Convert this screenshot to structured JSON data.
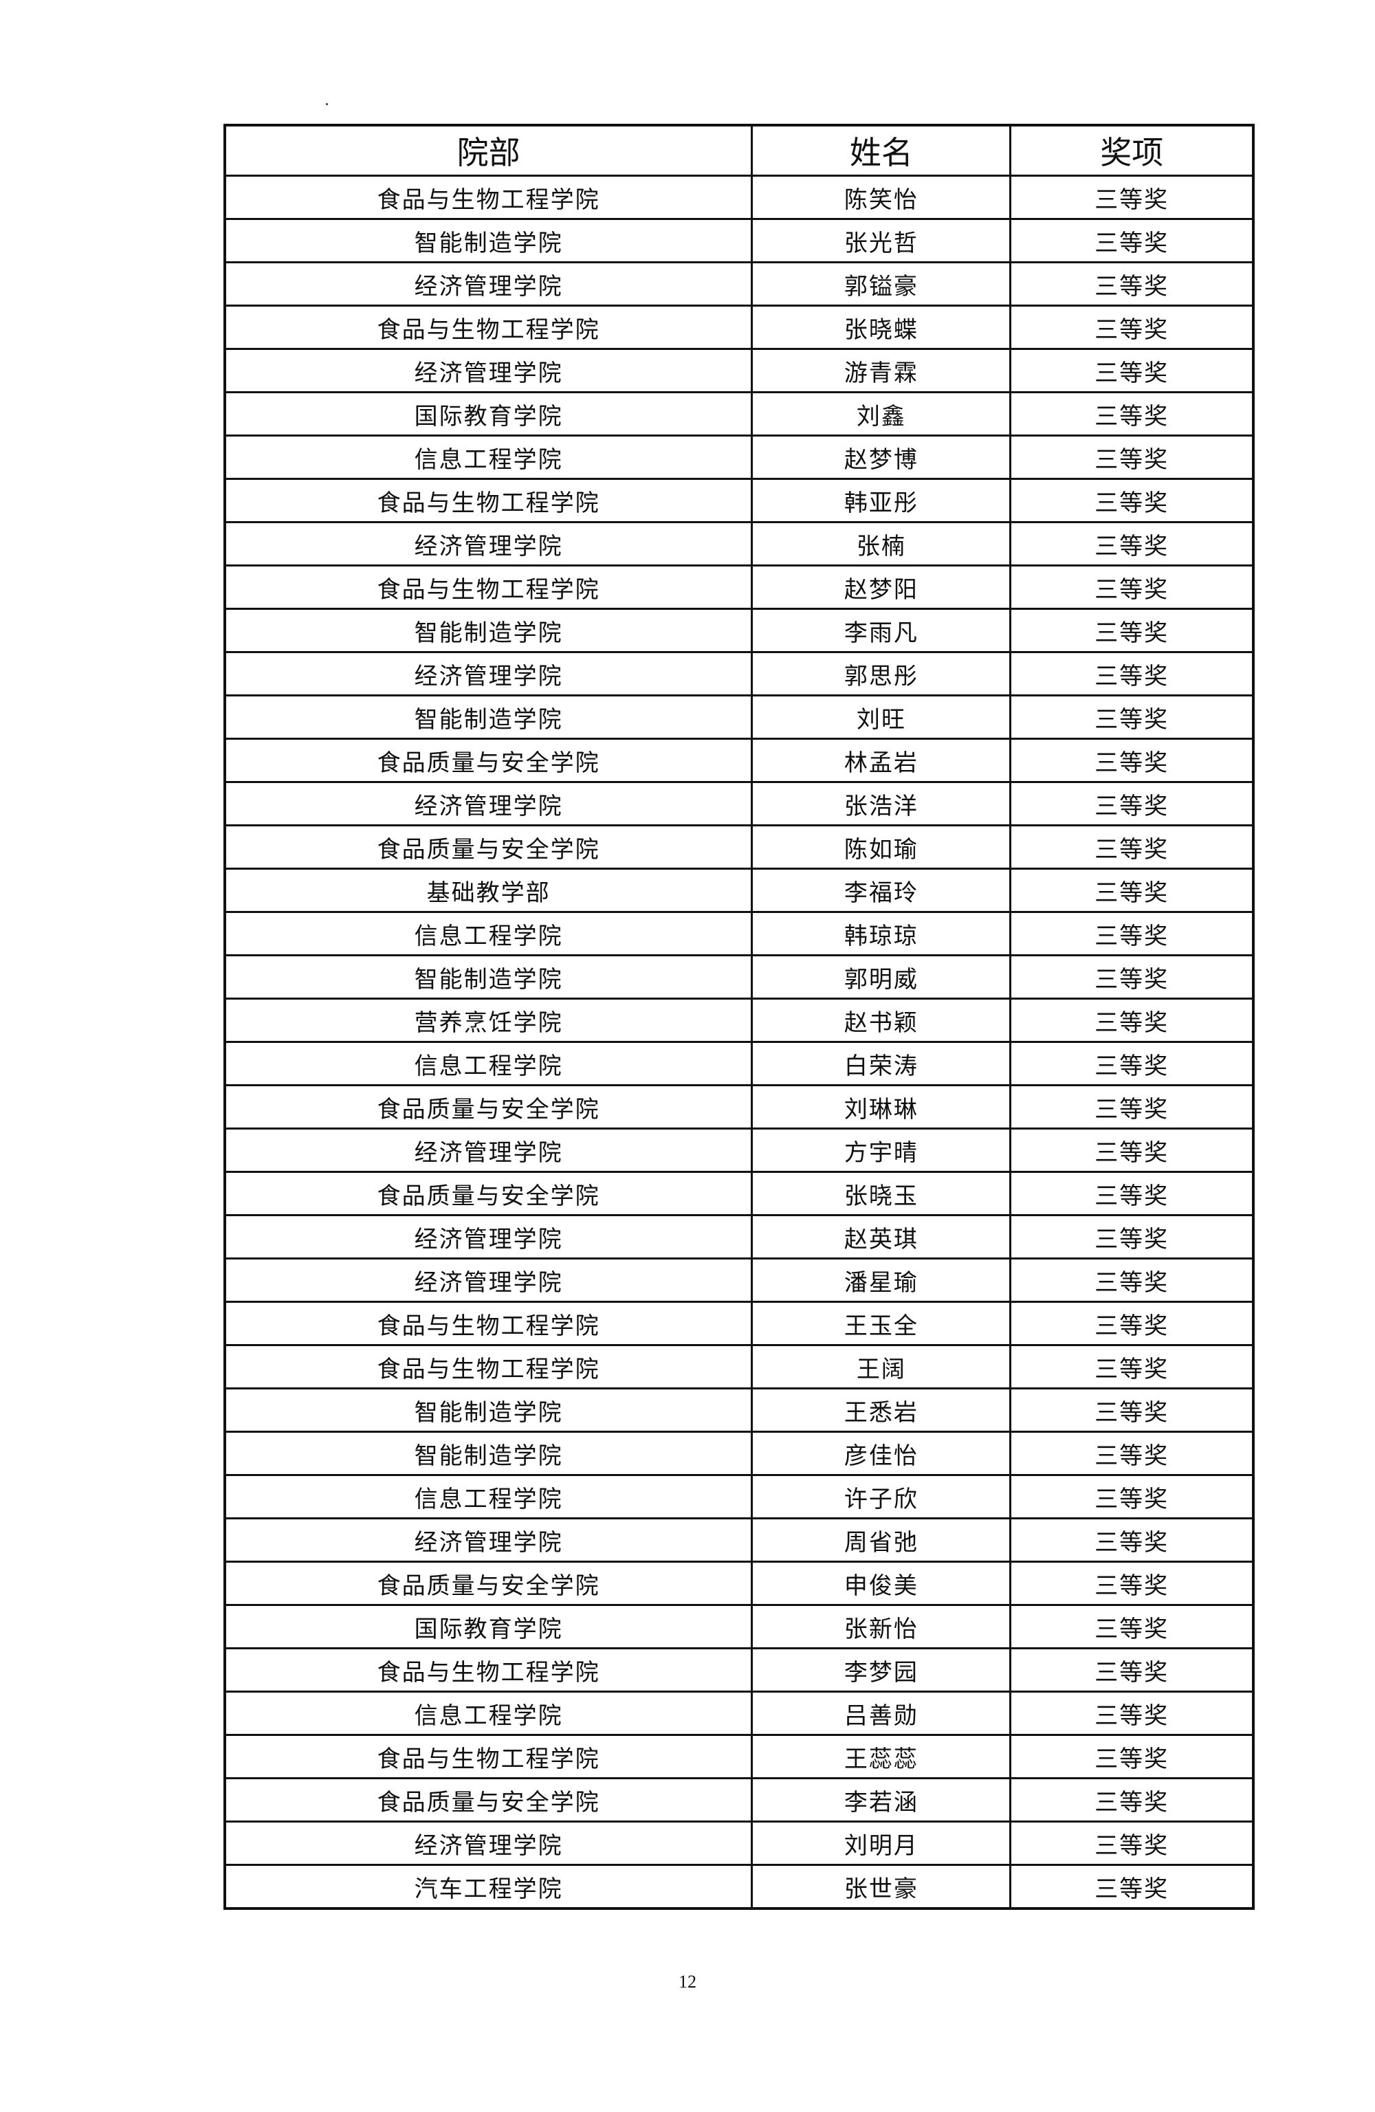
{
  "table": {
    "headers": [
      "院部",
      "姓名",
      "奖项"
    ],
    "rows": [
      [
        "食品与生物工程学院",
        "陈笑怡",
        "三等奖"
      ],
      [
        "智能制造学院",
        "张光哲",
        "三等奖"
      ],
      [
        "经济管理学院",
        "郭镒豪",
        "三等奖"
      ],
      [
        "食品与生物工程学院",
        "张晓蝶",
        "三等奖"
      ],
      [
        "经济管理学院",
        "游青霖",
        "三等奖"
      ],
      [
        "国际教育学院",
        "刘鑫",
        "三等奖"
      ],
      [
        "信息工程学院",
        "赵梦博",
        "三等奖"
      ],
      [
        "食品与生物工程学院",
        "韩亚彤",
        "三等奖"
      ],
      [
        "经济管理学院",
        "张楠",
        "三等奖"
      ],
      [
        "食品与生物工程学院",
        "赵梦阳",
        "三等奖"
      ],
      [
        "智能制造学院",
        "李雨凡",
        "三等奖"
      ],
      [
        "经济管理学院",
        "郭思彤",
        "三等奖"
      ],
      [
        "智能制造学院",
        "刘旺",
        "三等奖"
      ],
      [
        "食品质量与安全学院",
        "林孟岩",
        "三等奖"
      ],
      [
        "经济管理学院",
        "张浩洋",
        "三等奖"
      ],
      [
        "食品质量与安全学院",
        "陈如瑜",
        "三等奖"
      ],
      [
        "基础教学部",
        "李福玲",
        "三等奖"
      ],
      [
        "信息工程学院",
        "韩琼琼",
        "三等奖"
      ],
      [
        "智能制造学院",
        "郭明威",
        "三等奖"
      ],
      [
        "营养烹饪学院",
        "赵书颖",
        "三等奖"
      ],
      [
        "信息工程学院",
        "白荣涛",
        "三等奖"
      ],
      [
        "食品质量与安全学院",
        "刘琳琳",
        "三等奖"
      ],
      [
        "经济管理学院",
        "方宇晴",
        "三等奖"
      ],
      [
        "食品质量与安全学院",
        "张晓玉",
        "三等奖"
      ],
      [
        "经济管理学院",
        "赵英琪",
        "三等奖"
      ],
      [
        "经济管理学院",
        "潘星瑜",
        "三等奖"
      ],
      [
        "食品与生物工程学院",
        "王玉全",
        "三等奖"
      ],
      [
        "食品与生物工程学院",
        "王阔",
        "三等奖"
      ],
      [
        "智能制造学院",
        "王悉岩",
        "三等奖"
      ],
      [
        "智能制造学院",
        "彦佳怡",
        "三等奖"
      ],
      [
        "信息工程学院",
        "许子欣",
        "三等奖"
      ],
      [
        "经济管理学院",
        "周省弛",
        "三等奖"
      ],
      [
        "食品质量与安全学院",
        "申俊美",
        "三等奖"
      ],
      [
        "国际教育学院",
        "张新怡",
        "三等奖"
      ],
      [
        "食品与生物工程学院",
        "李梦园",
        "三等奖"
      ],
      [
        "信息工程学院",
        "吕善勋",
        "三等奖"
      ],
      [
        "食品与生物工程学院",
        "王蕊蕊",
        "三等奖"
      ],
      [
        "食品质量与安全学院",
        "李若涵",
        "三等奖"
      ],
      [
        "经济管理学院",
        "刘明月",
        "三等奖"
      ],
      [
        "汽车工程学院",
        "张世豪",
        "三等奖"
      ]
    ]
  },
  "page_number": "12"
}
